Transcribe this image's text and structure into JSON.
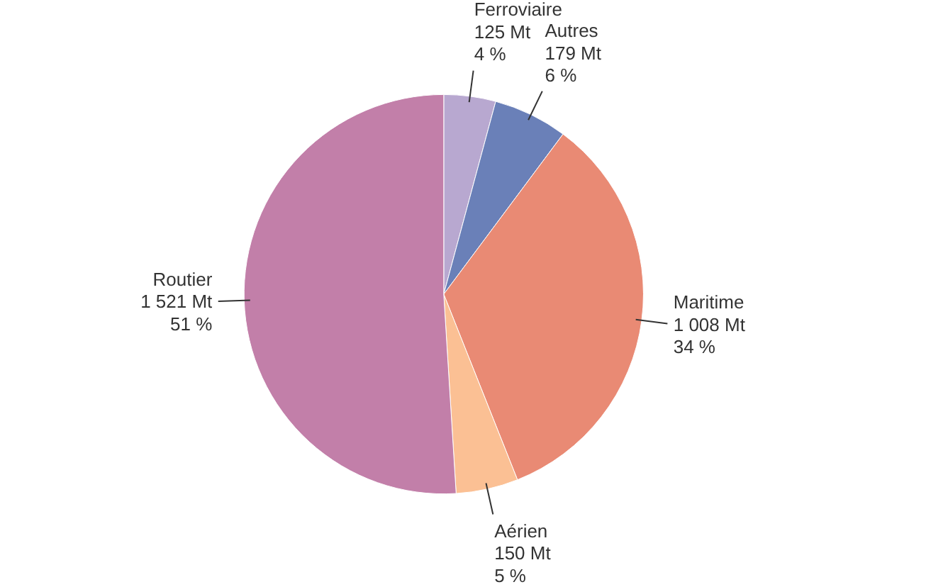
{
  "chart_data": {
    "type": "pie",
    "categories": [
      "Ferroviaire",
      "Autres",
      "Maritime",
      "Aérien",
      "Routier"
    ],
    "values": [
      125,
      179,
      1008,
      150,
      1521
    ],
    "value_labels": [
      "125 Mt\n4 %",
      "179 Mt\n6 %",
      "1 008 Mt\n34 %",
      "150 Mt\n5 %",
      "1 521 Mt\n51 %"
    ],
    "colors": [
      "#b8a8d0",
      "#6a80b8",
      "#e98a74",
      "#fbc094",
      "#c27fa9"
    ]
  }
}
